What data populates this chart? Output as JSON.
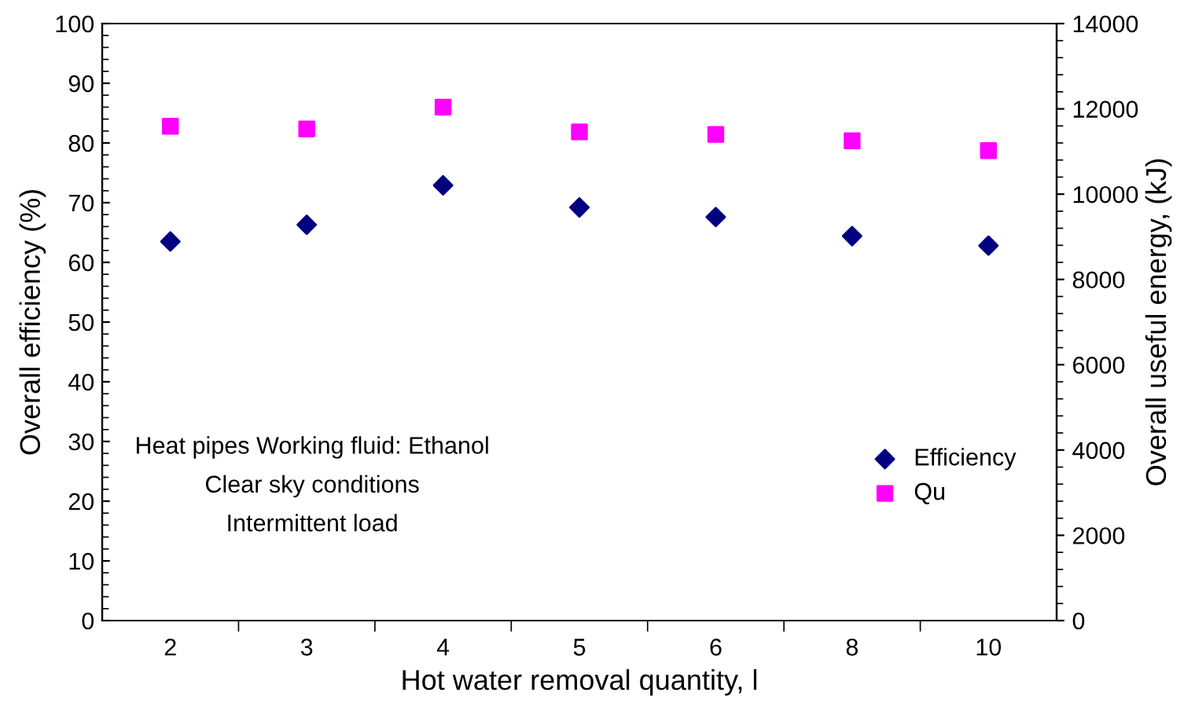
{
  "chart_data": {
    "type": "scatter",
    "xlabel": "Hot water removal quantity, l",
    "ylabel": "Overall efficiency (%)",
    "y2label": "Overall useful energy, (kJ)",
    "categories": [
      "2",
      "3",
      "4",
      "5",
      "6",
      "8",
      "10"
    ],
    "series": [
      {
        "name": "Efficiency",
        "color": "#000080",
        "marker": "diamond",
        "values": [
          63.5,
          66.3,
          72.9,
          69.2,
          67.6,
          64.4,
          62.8
        ]
      },
      {
        "name": "Qu",
        "color": "#ff00ff",
        "marker": "square",
        "axis": "y2",
        "values": [
          11590,
          11530,
          12040,
          11460,
          11400,
          11250,
          11020
        ]
      }
    ],
    "ylim": [
      0,
      100
    ],
    "yticks": [
      0,
      10,
      20,
      30,
      40,
      50,
      60,
      70,
      80,
      90,
      100
    ],
    "y2lim": [
      0,
      14000
    ],
    "y2ticks": [
      0,
      2000,
      4000,
      6000,
      8000,
      10000,
      12000,
      14000
    ],
    "legend": "bottom right",
    "grid": false,
    "annotations": [
      "Heat pipes Working fluid: Ethanol",
      "Clear sky conditions",
      "Intermittent load"
    ]
  }
}
